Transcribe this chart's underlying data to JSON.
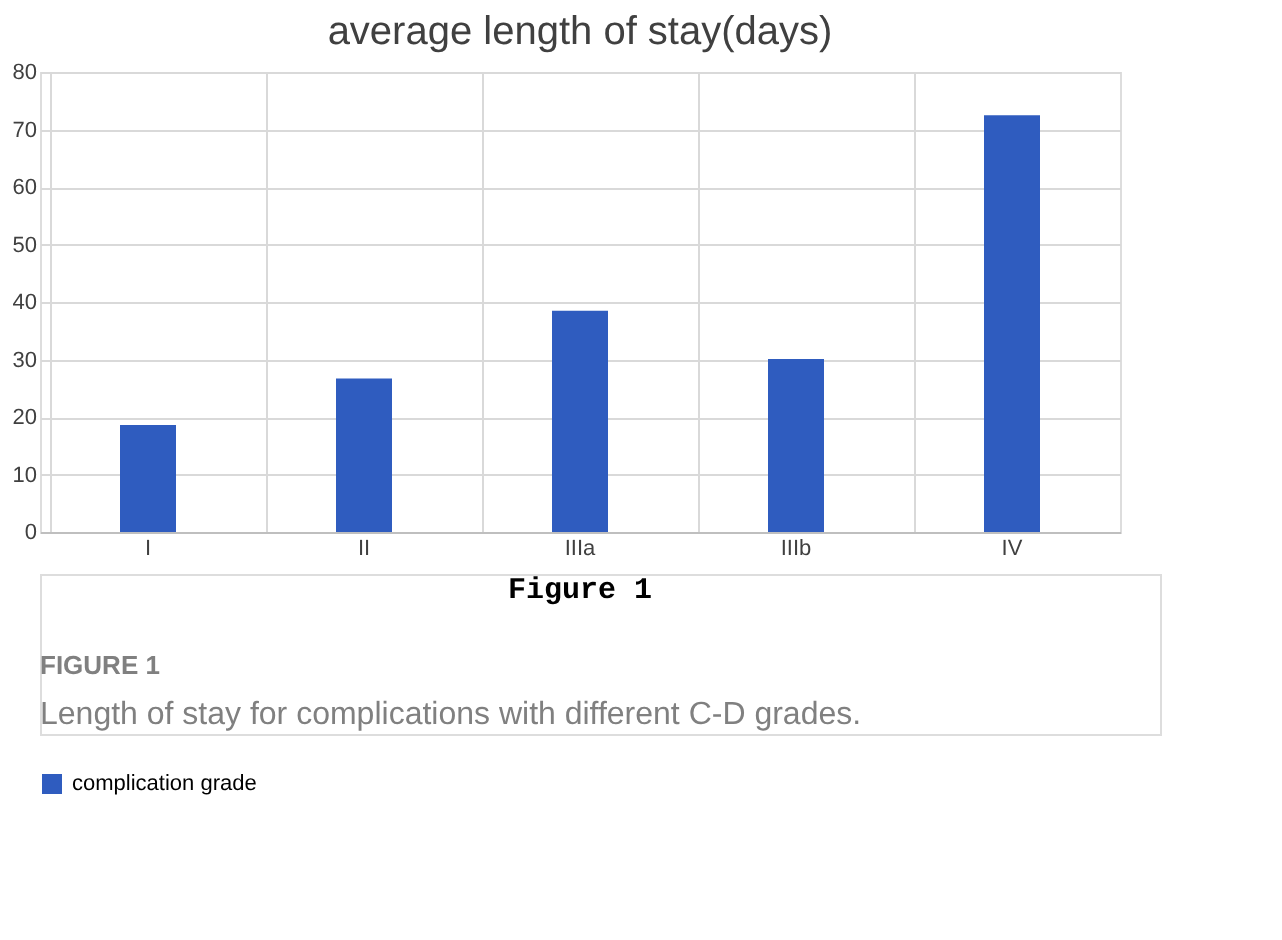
{
  "chart_data": {
    "type": "bar",
    "title": "average length of stay(days)",
    "categories": [
      "I",
      "II",
      "IIIa",
      "IIIb",
      "IV"
    ],
    "series": [
      {
        "name": "complication grade",
        "color": "#2f5cbf",
        "values": [
          18.6,
          26.7,
          38.5,
          30.1,
          72.5
        ]
      }
    ],
    "ylim": [
      0,
      80
    ],
    "yticks": [
      0,
      10,
      20,
      30,
      40,
      50,
      60,
      70,
      80
    ],
    "grid": true,
    "legend": "bottom",
    "annotations": [
      "Figure 1",
      "FIGURE 1",
      "Length of stay for complications with different C-D grades."
    ]
  }
}
